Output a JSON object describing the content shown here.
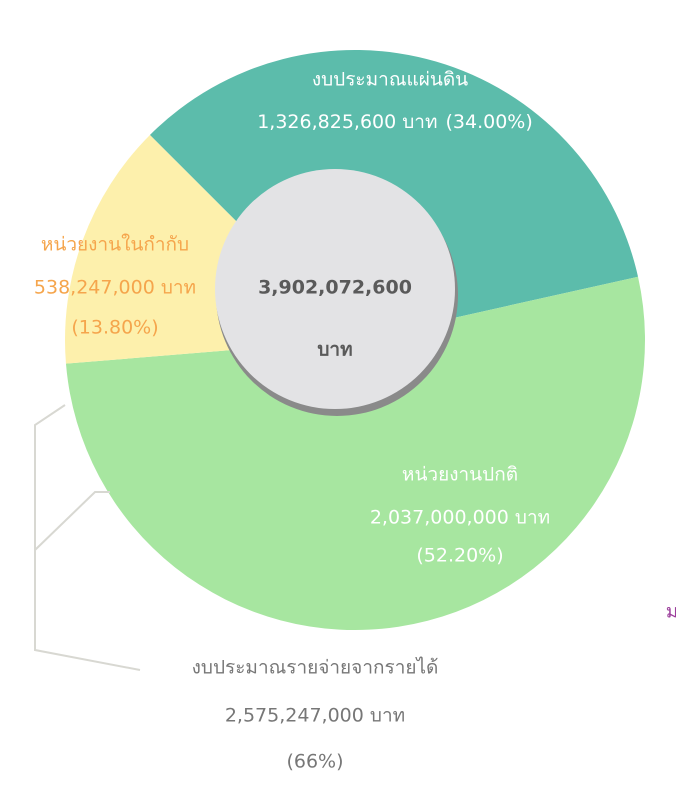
{
  "chart_data": {
    "type": "pie",
    "donut": true,
    "categories": [
      "งบประมาณแผ่นดิน",
      "หน่วยงานปกติ",
      "หน่วยงานในกำกับ"
    ],
    "amount_labels": [
      "1,326,825,600 บาท",
      "2,037,000,000 บาท",
      "538,247,000 บาท"
    ],
    "values": [
      34.0,
      52.2,
      13.8
    ],
    "value_labels": [
      "(34.00%)",
      "(52.20%)",
      "(13.80%)"
    ],
    "colors": [
      "#5cbcab",
      "#a7e6a0",
      "#fdf0ac"
    ],
    "label_colors": [
      "#ffffff",
      "#ffffff",
      "#f5a54c"
    ],
    "center_label": [
      "3,902,072,600",
      "บาท"
    ],
    "annotation": {
      "title": "งบประมาณรายจ่ายจากรายได้",
      "amount": "2,575,247,000 บาท",
      "percent": "(66%)"
    },
    "edge_text": "ม"
  }
}
